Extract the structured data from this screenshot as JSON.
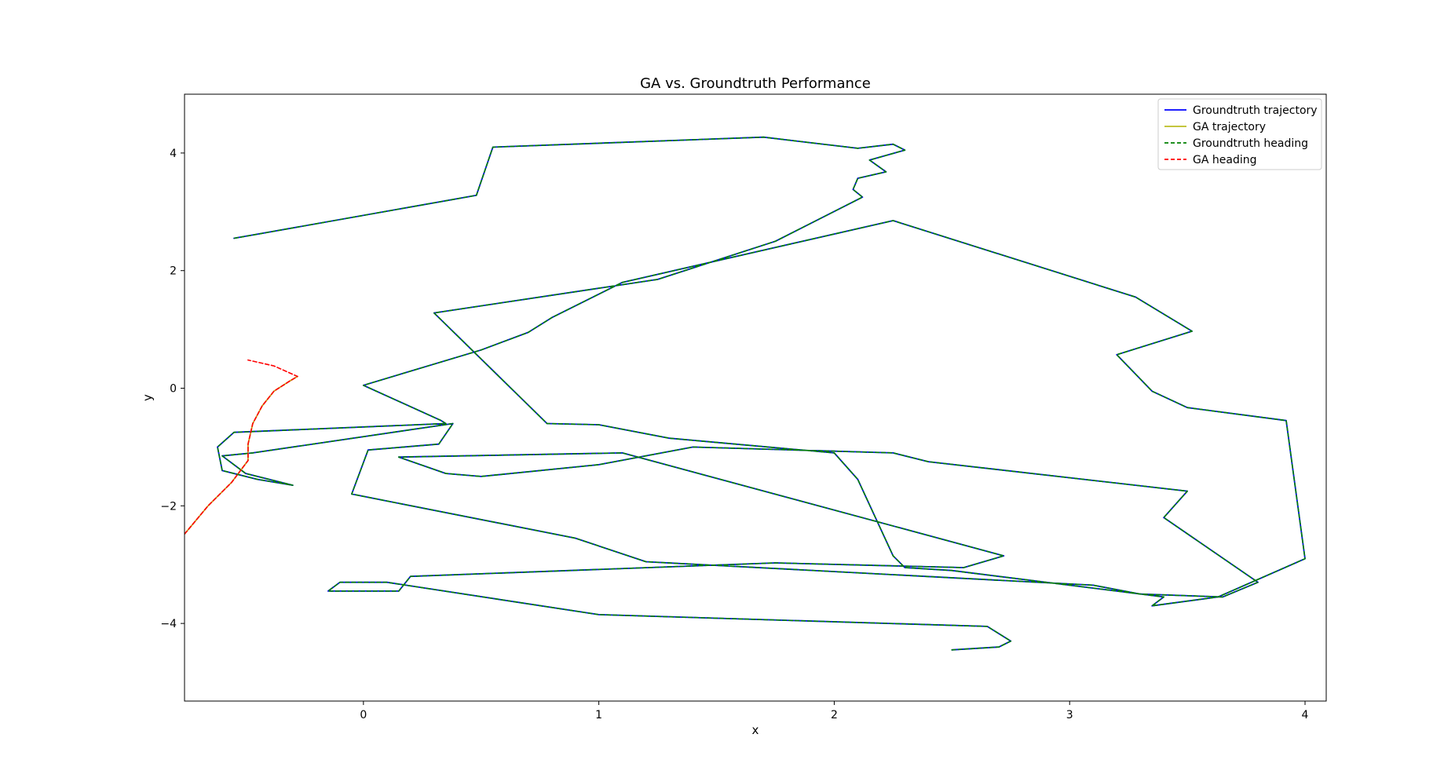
{
  "chart_data": {
    "type": "line",
    "title": "GA vs. Groundtruth Performance",
    "xlabel": "x",
    "ylabel": "y",
    "xlim": [
      -0.76,
      4.09
    ],
    "ylim": [
      -5.32,
      5.0
    ],
    "xticks": [
      {
        "value": 0,
        "label": "0"
      },
      {
        "value": 1,
        "label": "1"
      },
      {
        "value": 2,
        "label": "2"
      },
      {
        "value": 3,
        "label": "3"
      },
      {
        "value": 4,
        "label": "4"
      }
    ],
    "yticks": [
      {
        "value": 4,
        "label": "4"
      },
      {
        "value": 2,
        "label": "2"
      },
      {
        "value": 0,
        "label": "0"
      },
      {
        "value": -2,
        "label": "−2"
      },
      {
        "value": -4,
        "label": "−4"
      }
    ],
    "grid": false,
    "legend_position": "top-right",
    "series": [
      {
        "name": "Groundtruth trajectory",
        "color": "#0000ff",
        "dash": "solid",
        "x": [
          2.5,
          2.7,
          2.75,
          2.65,
          1.0,
          0.1,
          -0.1,
          -0.15,
          0.15,
          0.2,
          1.75,
          2.55,
          2.72,
          1.1,
          0.15,
          0.35,
          0.5,
          1.0,
          1.4,
          2.25,
          2.4,
          3.5,
          3.4,
          3.8,
          3.65,
          3.3,
          3.1,
          1.2,
          0.9,
          -0.05,
          0.02,
          0.32,
          0.38,
          -0.47,
          -0.6,
          -0.5,
          -0.3,
          -0.45,
          -0.6,
          -0.62,
          -0.55,
          0.35,
          0.33,
          0.0,
          0.5,
          0.7,
          0.8,
          1.1,
          2.25,
          3.28,
          3.52,
          3.2,
          3.35,
          3.5,
          3.92,
          4.0,
          3.63,
          3.35,
          3.4,
          2.5,
          2.3,
          2.25,
          2.1,
          2.0,
          1.3,
          1.0,
          0.78,
          0.3,
          1.25,
          1.75,
          2.12,
          2.08,
          2.1,
          2.22,
          2.15,
          2.3,
          2.25,
          2.1,
          1.7,
          0.55,
          0.48,
          -0.45,
          -0.55
        ],
        "y": [
          -4.45,
          -4.4,
          -4.3,
          -4.05,
          -3.85,
          -3.3,
          -3.3,
          -3.45,
          -3.45,
          -3.2,
          -2.97,
          -3.05,
          -2.85,
          -1.1,
          -1.17,
          -1.45,
          -1.5,
          -1.3,
          -1.0,
          -1.1,
          -1.25,
          -1.75,
          -2.2,
          -3.3,
          -3.55,
          -3.5,
          -3.35,
          -2.95,
          -2.55,
          -1.8,
          -1.05,
          -0.95,
          -0.6,
          -1.1,
          -1.15,
          -1.45,
          -1.65,
          -1.55,
          -1.4,
          -1.0,
          -0.75,
          -0.6,
          -0.55,
          0.05,
          0.65,
          0.95,
          1.2,
          1.8,
          2.85,
          1.55,
          0.97,
          0.57,
          -0.05,
          -0.33,
          -0.55,
          -2.9,
          -3.55,
          -3.7,
          -3.55,
          -3.1,
          -3.05,
          -2.85,
          -1.55,
          -1.1,
          -0.85,
          -0.62,
          -0.6,
          1.28,
          1.85,
          2.5,
          3.25,
          3.38,
          3.57,
          3.68,
          3.88,
          4.05,
          4.15,
          4.08,
          4.27,
          4.1,
          3.28,
          2.62,
          2.55
        ],
        "x_note": "",
        "y_note": ""
      },
      {
        "name": "GA trajectory",
        "color": "#bcbd22",
        "dash": "solid",
        "x": [
          -0.76,
          -0.66,
          -0.56,
          -0.49,
          -0.49,
          -0.47,
          -0.43,
          -0.38,
          -0.31,
          -0.28
        ],
        "y": [
          -2.48,
          -2.0,
          -1.6,
          -1.23,
          -0.95,
          -0.6,
          -0.3,
          -0.05,
          0.13,
          0.2
        ]
      },
      {
        "name": "Groundtruth heading",
        "color": "#008000",
        "dash": "dashed",
        "x": [
          2.5,
          2.7,
          2.75,
          2.65,
          1.0,
          0.1,
          -0.1,
          -0.15,
          0.15,
          0.2,
          1.75,
          2.55,
          2.72,
          1.1,
          0.15,
          0.35,
          0.5,
          1.0,
          1.4,
          2.25,
          2.4,
          3.5,
          3.4,
          3.8,
          3.65,
          3.3,
          3.1,
          1.2,
          0.9,
          -0.05,
          0.02,
          0.32,
          0.38,
          -0.47,
          -0.6,
          -0.5,
          -0.3,
          -0.45,
          -0.6,
          -0.62,
          -0.55,
          0.35,
          0.33,
          0.0,
          0.5,
          0.7,
          0.8,
          1.1,
          2.25,
          3.28,
          3.52,
          3.2,
          3.35,
          3.5,
          3.92,
          4.0,
          3.63,
          3.35,
          3.4,
          2.5,
          2.3,
          2.25,
          2.1,
          2.0,
          1.3,
          1.0,
          0.78,
          0.3,
          1.25,
          1.75,
          2.12,
          2.08,
          2.1,
          2.22,
          2.15,
          2.3,
          2.25,
          2.1,
          1.7,
          0.55,
          0.48,
          -0.45,
          -0.55
        ],
        "y": [
          -4.45,
          -4.4,
          -4.3,
          -4.05,
          -3.85,
          -3.3,
          -3.3,
          -3.45,
          -3.45,
          -3.2,
          -2.97,
          -3.05,
          -2.85,
          -1.1,
          -1.17,
          -1.45,
          -1.5,
          -1.3,
          -1.0,
          -1.1,
          -1.25,
          -1.75,
          -2.2,
          -3.3,
          -3.55,
          -3.5,
          -3.35,
          -2.95,
          -2.55,
          -1.8,
          -1.05,
          -0.95,
          -0.6,
          -1.1,
          -1.15,
          -1.45,
          -1.65,
          -1.55,
          -1.4,
          -1.0,
          -0.75,
          -0.6,
          -0.55,
          0.05,
          0.65,
          0.95,
          1.2,
          1.8,
          2.85,
          1.55,
          0.97,
          0.57,
          -0.05,
          -0.33,
          -0.55,
          -2.9,
          -3.55,
          -3.7,
          -3.55,
          -3.1,
          -3.05,
          -2.85,
          -1.55,
          -1.1,
          -0.85,
          -0.62,
          -0.6,
          1.28,
          1.85,
          2.5,
          3.25,
          3.38,
          3.57,
          3.68,
          3.88,
          4.05,
          4.15,
          4.08,
          4.27,
          4.1,
          3.28,
          2.62,
          2.55
        ]
      },
      {
        "name": "GA heading",
        "color": "#ff0000",
        "dash": "dashed",
        "x": [
          -0.76,
          -0.66,
          -0.56,
          -0.49,
          -0.49,
          -0.47,
          -0.43,
          -0.38,
          -0.31,
          -0.28,
          -0.38,
          -0.49
        ],
        "y": [
          -2.48,
          -2.0,
          -1.6,
          -1.23,
          -0.95,
          -0.6,
          -0.3,
          -0.05,
          0.13,
          0.2,
          0.38,
          0.48
        ]
      }
    ]
  }
}
